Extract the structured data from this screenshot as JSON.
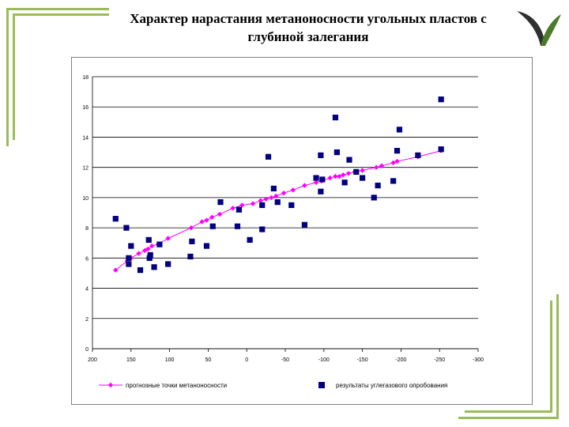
{
  "slide": {
    "title": "Характер нарастания метаноносности угольных пластов с глубиной залегания",
    "accent_color": "#9bbb59"
  },
  "chart_data": {
    "type": "scatter",
    "title": "",
    "xlabel": "",
    "ylabel": "",
    "xlim": [
      200,
      -300
    ],
    "ylim": [
      0,
      18
    ],
    "x_ticks": [
      200,
      150,
      100,
      50,
      0,
      -50,
      -100,
      -150,
      -200,
      -250,
      -300
    ],
    "y_ticks": [
      0,
      2,
      4,
      6,
      8,
      10,
      12,
      14,
      16,
      18
    ],
    "grid": "horizontal",
    "legend_position": "bottom",
    "series": [
      {
        "name": "прогнозные точки метаноносности",
        "type": "line",
        "marker": "diamond",
        "color": "#ff00ff",
        "points": [
          [
            170,
            5.2
          ],
          [
            155,
            5.8
          ],
          [
            150,
            6.0
          ],
          [
            140,
            6.3
          ],
          [
            132,
            6.5
          ],
          [
            128,
            6.6
          ],
          [
            123,
            6.8
          ],
          [
            115,
            6.9
          ],
          [
            102,
            7.3
          ],
          [
            72,
            8.0
          ],
          [
            58,
            8.4
          ],
          [
            52,
            8.5
          ],
          [
            45,
            8.7
          ],
          [
            35,
            8.9
          ],
          [
            18,
            9.3
          ],
          [
            6,
            9.5
          ],
          [
            -8,
            9.6
          ],
          [
            -18,
            9.8
          ],
          [
            -25,
            9.9
          ],
          [
            -32,
            10.0
          ],
          [
            -38,
            10.1
          ],
          [
            -48,
            10.3
          ],
          [
            -60,
            10.5
          ],
          [
            -75,
            10.8
          ],
          [
            -90,
            11.0
          ],
          [
            -97,
            11.1
          ],
          [
            -108,
            11.3
          ],
          [
            -115,
            11.4
          ],
          [
            -120,
            11.4
          ],
          [
            -125,
            11.5
          ],
          [
            -132,
            11.6
          ],
          [
            -140,
            11.7
          ],
          [
            -150,
            11.8
          ],
          [
            -168,
            12.0
          ],
          [
            -175,
            12.1
          ],
          [
            -190,
            12.3
          ],
          [
            -195,
            12.4
          ],
          [
            -222,
            12.7
          ],
          [
            -252,
            13.1
          ]
        ]
      },
      {
        "name": "результаты углегазового опробования",
        "type": "scatter",
        "marker": "square",
        "color": "#000080",
        "points": [
          [
            170,
            8.6
          ],
          [
            156,
            8.0
          ],
          [
            153,
            6.0
          ],
          [
            150,
            6.8
          ],
          [
            153,
            5.6
          ],
          [
            138,
            5.2
          ],
          [
            127,
            7.2
          ],
          [
            125,
            6.2
          ],
          [
            126,
            6.0
          ],
          [
            120,
            5.4
          ],
          [
            113,
            6.9
          ],
          [
            102,
            5.6
          ],
          [
            73,
            6.1
          ],
          [
            71,
            7.1
          ],
          [
            52,
            6.8
          ],
          [
            44,
            8.1
          ],
          [
            34,
            9.7
          ],
          [
            12,
            8.1
          ],
          [
            10,
            9.2
          ],
          [
            -4,
            7.2
          ],
          [
            -20,
            7.9
          ],
          [
            -20,
            9.5
          ],
          [
            -28,
            12.7
          ],
          [
            -35,
            10.6
          ],
          [
            -40,
            9.7
          ],
          [
            -58,
            9.5
          ],
          [
            -75,
            8.2
          ],
          [
            -90,
            11.3
          ],
          [
            -96,
            12.8
          ],
          [
            -96,
            10.4
          ],
          [
            -98,
            11.2
          ],
          [
            -115,
            15.3
          ],
          [
            -117,
            13.0
          ],
          [
            -127,
            11.0
          ],
          [
            -133,
            12.5
          ],
          [
            -142,
            11.7
          ],
          [
            -150,
            11.3
          ],
          [
            -165,
            10.0
          ],
          [
            -170,
            10.8
          ],
          [
            -190,
            11.1
          ],
          [
            -195,
            13.1
          ],
          [
            -198,
            14.5
          ],
          [
            -222,
            12.8
          ],
          [
            -252,
            16.5
          ],
          [
            -252,
            13.2
          ]
        ]
      }
    ]
  }
}
